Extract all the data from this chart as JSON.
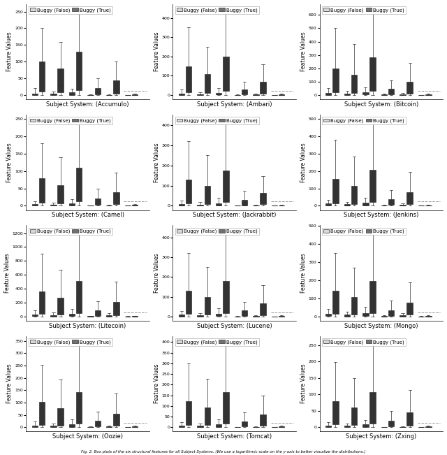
{
  "subjects": [
    "Accumulo",
    "Ambari",
    "Bitcoin",
    "Camel",
    "Jackrabbit",
    "Jenkins",
    "Litecoin",
    "Lucene",
    "Mongo",
    "Oozie",
    "Tomcat",
    "Zxing"
  ],
  "n_features": 6,
  "color_false": "#d8d8d8",
  "color_true": "#707070",
  "color_median": "#000000",
  "title_fontsize": 6,
  "label_fontsize": 5.5,
  "tick_fontsize": 4.5,
  "legend_fontsize": 5,
  "fig_caption": "Fig. 2. Box plots of the six structural features for all Subject Systems. (We use a logarithmic scale on the y-axis to better visualize the distributions.)",
  "box_data": {
    "Accumulo": {
      "false_stats": [
        [
          0,
          1,
          2,
          5,
          20
        ],
        [
          0,
          1,
          2,
          4,
          10
        ],
        [
          0,
          1,
          3,
          8,
          18
        ],
        [
          0,
          0,
          0,
          0,
          2
        ],
        [
          0,
          0,
          0,
          1,
          3
        ],
        [
          0,
          0,
          0,
          0,
          1
        ]
      ],
      "true_stats": [
        [
          0,
          10,
          40,
          100,
          200
        ],
        [
          0,
          8,
          30,
          80,
          160
        ],
        [
          0,
          15,
          55,
          130,
          260
        ],
        [
          0,
          2,
          8,
          20,
          50
        ],
        [
          0,
          5,
          18,
          45,
          100
        ],
        [
          0,
          0,
          1,
          2,
          4
        ]
      ]
    },
    "Ambari": {
      "false_stats": [
        [
          0,
          1,
          3,
          8,
          30
        ],
        [
          0,
          1,
          2,
          5,
          15
        ],
        [
          0,
          2,
          5,
          12,
          35
        ],
        [
          0,
          0,
          0,
          1,
          3
        ],
        [
          0,
          0,
          1,
          2,
          6
        ],
        [
          0,
          0,
          0,
          0,
          1
        ]
      ],
      "true_stats": [
        [
          0,
          15,
          60,
          150,
          350
        ],
        [
          0,
          10,
          45,
          110,
          250
        ],
        [
          0,
          22,
          80,
          200,
          450
        ],
        [
          0,
          3,
          12,
          30,
          70
        ],
        [
          0,
          8,
          28,
          70,
          160
        ],
        [
          0,
          0,
          1,
          3,
          6
        ]
      ]
    },
    "Bitcoin": {
      "false_stats": [
        [
          0,
          2,
          6,
          15,
          50
        ],
        [
          0,
          1,
          4,
          10,
          30
        ],
        [
          0,
          3,
          8,
          20,
          60
        ],
        [
          0,
          0,
          1,
          3,
          8
        ],
        [
          0,
          1,
          2,
          6,
          15
        ],
        [
          0,
          0,
          0,
          1,
          2
        ]
      ],
      "true_stats": [
        [
          0,
          20,
          80,
          200,
          500
        ],
        [
          0,
          15,
          60,
          150,
          380
        ],
        [
          0,
          30,
          110,
          280,
          650
        ],
        [
          0,
          5,
          18,
          45,
          110
        ],
        [
          0,
          12,
          40,
          100,
          240
        ],
        [
          0,
          0,
          1,
          4,
          8
        ]
      ]
    },
    "Camel": {
      "false_stats": [
        [
          0,
          1,
          2,
          4,
          12
        ],
        [
          0,
          1,
          2,
          3,
          8
        ],
        [
          0,
          1,
          3,
          7,
          18
        ],
        [
          0,
          0,
          0,
          0,
          1
        ],
        [
          0,
          0,
          0,
          1,
          3
        ],
        [
          0,
          0,
          0,
          0,
          1
        ]
      ],
      "true_stats": [
        [
          0,
          8,
          30,
          80,
          180
        ],
        [
          0,
          6,
          22,
          60,
          140
        ],
        [
          0,
          12,
          42,
          110,
          250
        ],
        [
          0,
          2,
          8,
          20,
          50
        ],
        [
          0,
          5,
          16,
          40,
          95
        ],
        [
          0,
          0,
          1,
          2,
          5
        ]
      ]
    },
    "Jackrabbit": {
      "false_stats": [
        [
          0,
          1,
          3,
          8,
          25
        ],
        [
          0,
          1,
          2,
          6,
          18
        ],
        [
          0,
          2,
          5,
          13,
          38
        ],
        [
          0,
          0,
          0,
          1,
          3
        ],
        [
          0,
          0,
          1,
          2,
          6
        ],
        [
          0,
          0,
          0,
          0,
          1
        ]
      ],
      "true_stats": [
        [
          0,
          12,
          50,
          130,
          320
        ],
        [
          0,
          9,
          38,
          100,
          250
        ],
        [
          0,
          18,
          68,
          175,
          430
        ],
        [
          0,
          3,
          12,
          30,
          75
        ],
        [
          0,
          7,
          25,
          62,
          148
        ],
        [
          0,
          0,
          1,
          3,
          6
        ]
      ]
    },
    "Jenkins": {
      "false_stats": [
        [
          0,
          2,
          5,
          12,
          35
        ],
        [
          0,
          1,
          3,
          8,
          22
        ],
        [
          0,
          2,
          6,
          16,
          45
        ],
        [
          0,
          0,
          1,
          2,
          6
        ],
        [
          0,
          1,
          2,
          5,
          14
        ],
        [
          0,
          0,
          0,
          1,
          2
        ]
      ],
      "true_stats": [
        [
          0,
          15,
          60,
          155,
          380
        ],
        [
          0,
          11,
          45,
          115,
          285
        ],
        [
          0,
          22,
          80,
          205,
          500
        ],
        [
          0,
          4,
          15,
          38,
          92
        ],
        [
          0,
          9,
          32,
          80,
          195
        ],
        [
          0,
          0,
          1,
          3,
          7
        ]
      ]
    },
    "Litecoin": {
      "false_stats": [
        [
          0,
          3,
          10,
          28,
          90
        ],
        [
          0,
          2,
          7,
          20,
          60
        ],
        [
          0,
          4,
          14,
          38,
          110
        ],
        [
          0,
          0,
          1,
          4,
          12
        ],
        [
          0,
          2,
          6,
          16,
          44
        ],
        [
          0,
          0,
          0,
          1,
          3
        ]
      ],
      "true_stats": [
        [
          0,
          35,
          140,
          360,
          900
        ],
        [
          0,
          26,
          105,
          270,
          670
        ],
        [
          0,
          52,
          200,
          510,
          1250
        ],
        [
          0,
          9,
          35,
          90,
          220
        ],
        [
          0,
          22,
          82,
          205,
          500
        ],
        [
          0,
          0,
          2,
          5,
          12
        ]
      ]
    },
    "Lucene": {
      "false_stats": [
        [
          0,
          1,
          3,
          9,
          28
        ],
        [
          0,
          1,
          2,
          6,
          18
        ],
        [
          0,
          2,
          5,
          14,
          42
        ],
        [
          0,
          0,
          0,
          1,
          3
        ],
        [
          0,
          0,
          1,
          2,
          7
        ],
        [
          0,
          0,
          0,
          0,
          1
        ]
      ],
      "true_stats": [
        [
          0,
          12,
          50,
          130,
          320
        ],
        [
          0,
          9,
          38,
          100,
          250
        ],
        [
          0,
          18,
          70,
          180,
          440
        ],
        [
          0,
          3,
          12,
          30,
          75
        ],
        [
          0,
          7,
          26,
          65,
          158
        ],
        [
          0,
          0,
          1,
          3,
          6
        ]
      ]
    },
    "Mongo": {
      "false_stats": [
        [
          0,
          2,
          5,
          13,
          40
        ],
        [
          0,
          1,
          3,
          9,
          26
        ],
        [
          0,
          2,
          7,
          18,
          53
        ],
        [
          0,
          0,
          1,
          2,
          7
        ],
        [
          0,
          1,
          2,
          6,
          17
        ],
        [
          0,
          0,
          0,
          1,
          2
        ]
      ],
      "true_stats": [
        [
          0,
          14,
          55,
          142,
          350
        ],
        [
          0,
          10,
          42,
          108,
          267
        ],
        [
          0,
          20,
          76,
          195,
          478
        ],
        [
          0,
          4,
          14,
          35,
          86
        ],
        [
          0,
          9,
          30,
          76,
          186
        ],
        [
          0,
          0,
          1,
          3,
          7
        ]
      ]
    },
    "Oozie": {
      "false_stats": [
        [
          0,
          1,
          3,
          7,
          22
        ],
        [
          0,
          1,
          2,
          5,
          14
        ],
        [
          0,
          1,
          4,
          11,
          32
        ],
        [
          0,
          0,
          0,
          1,
          3
        ],
        [
          0,
          0,
          1,
          2,
          5
        ],
        [
          0,
          0,
          0,
          0,
          1
        ]
      ],
      "true_stats": [
        [
          0,
          10,
          40,
          102,
          252
        ],
        [
          0,
          7,
          30,
          77,
          192
        ],
        [
          0,
          15,
          56,
          143,
          352
        ],
        [
          0,
          2,
          10,
          25,
          62
        ],
        [
          0,
          6,
          22,
          55,
          136
        ],
        [
          0,
          0,
          1,
          2,
          5
        ]
      ]
    },
    "Tomcat": {
      "false_stats": [
        [
          0,
          1,
          3,
          8,
          25
        ],
        [
          0,
          1,
          2,
          6,
          17
        ],
        [
          0,
          2,
          5,
          13,
          38
        ],
        [
          0,
          0,
          0,
          0,
          1
        ],
        [
          0,
          0,
          0,
          1,
          3
        ],
        [
          0,
          0,
          0,
          0,
          1
        ]
      ],
      "true_stats": [
        [
          0,
          12,
          48,
          122,
          300
        ],
        [
          0,
          9,
          36,
          92,
          228
        ],
        [
          0,
          18,
          65,
          166,
          408
        ],
        [
          0,
          3,
          11,
          28,
          68
        ],
        [
          0,
          7,
          24,
          60,
          148
        ],
        [
          0,
          0,
          1,
          3,
          6
        ]
      ]
    },
    "Zxing": {
      "false_stats": [
        [
          0,
          1,
          2,
          5,
          15
        ],
        [
          0,
          1,
          2,
          4,
          10
        ],
        [
          0,
          1,
          3,
          8,
          22
        ],
        [
          0,
          0,
          0,
          0,
          1
        ],
        [
          0,
          0,
          0,
          1,
          2
        ],
        [
          0,
          0,
          0,
          0,
          1
        ]
      ],
      "true_stats": [
        [
          0,
          8,
          32,
          80,
          198
        ],
        [
          0,
          6,
          24,
          60,
          150
        ],
        [
          0,
          11,
          42,
          107,
          264
        ],
        [
          0,
          2,
          8,
          20,
          50
        ],
        [
          0,
          5,
          18,
          45,
          112
        ],
        [
          0,
          0,
          1,
          2,
          5
        ]
      ]
    }
  },
  "fig_width": 6.4,
  "fig_height": 6.51
}
